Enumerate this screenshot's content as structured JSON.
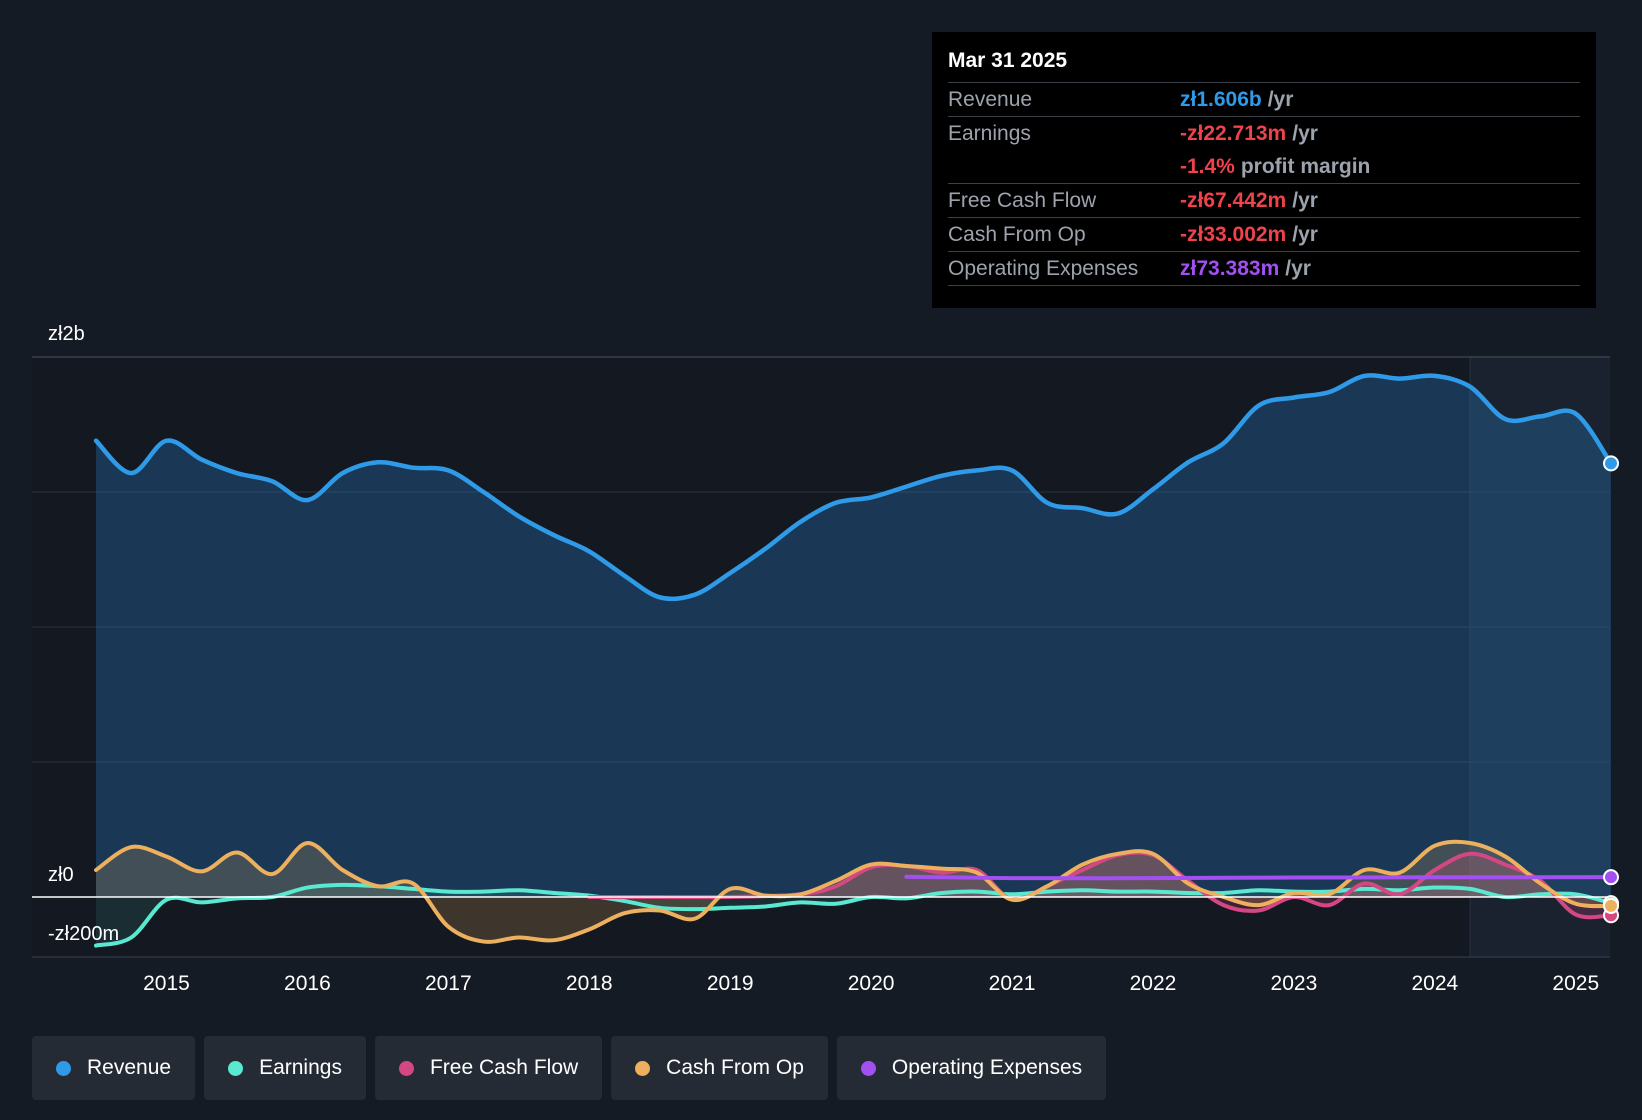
{
  "tooltip": {
    "date": "Mar 31 2025",
    "rows": [
      {
        "label": "Revenue",
        "value": "zł1.606b",
        "unit": "/yr",
        "color": "#2f9be8"
      },
      {
        "label": "Earnings",
        "value": "-zł22.713m",
        "unit": "/yr",
        "color": "#f0424a"
      },
      {
        "label": "",
        "value": "-1.4%",
        "unit": "profit margin",
        "color": "#f0424a"
      },
      {
        "label": "Free Cash Flow",
        "value": "-zł67.442m",
        "unit": "/yr",
        "color": "#f0424a"
      },
      {
        "label": "Cash From Op",
        "value": "-zł33.002m",
        "unit": "/yr",
        "color": "#f0424a"
      },
      {
        "label": "Operating Expenses",
        "value": "zł73.383m",
        "unit": "/yr",
        "color": "#a251f0"
      }
    ]
  },
  "legend": [
    {
      "label": "Revenue",
      "color": "#2f9be8"
    },
    {
      "label": "Earnings",
      "color": "#5ae8d0"
    },
    {
      "label": "Free Cash Flow",
      "color": "#d54783"
    },
    {
      "label": "Cash From Op",
      "color": "#ecb05e"
    },
    {
      "label": "Operating Expenses",
      "color": "#a251f0"
    }
  ],
  "chart_data": {
    "type": "line",
    "y_tick_labels": [
      "zł2b",
      "zł0",
      "-zł200m"
    ],
    "ylim": [
      -200,
      2000
    ],
    "y_unit": "zł m",
    "x_tick_labels": [
      "2015",
      "2016",
      "2017",
      "2018",
      "2019",
      "2020",
      "2021",
      "2022",
      "2023",
      "2024",
      "2025"
    ],
    "xlim": [
      2014.5,
      2025.25
    ],
    "forecast_start": 2024.25,
    "series": [
      {
        "name": "Revenue",
        "color": "#2f9be8",
        "fill": true,
        "x": [
          2014.5,
          2014.75,
          2015.0,
          2015.25,
          2015.5,
          2015.75,
          2016.0,
          2016.25,
          2016.5,
          2016.75,
          2017.0,
          2017.25,
          2017.5,
          2017.75,
          2018.0,
          2018.25,
          2018.5,
          2018.75,
          2019.0,
          2019.25,
          2019.5,
          2019.75,
          2020.0,
          2020.25,
          2020.5,
          2020.75,
          2021.0,
          2021.25,
          2021.5,
          2021.75,
          2022.0,
          2022.25,
          2022.5,
          2022.75,
          2023.0,
          2023.25,
          2023.5,
          2023.75,
          2024.0,
          2024.25,
          2024.5,
          2024.75,
          2025.0,
          2025.25
        ],
        "values": [
          1690,
          1570,
          1690,
          1620,
          1570,
          1540,
          1470,
          1570,
          1610,
          1590,
          1580,
          1500,
          1410,
          1340,
          1280,
          1190,
          1110,
          1120,
          1200,
          1290,
          1390,
          1460,
          1480,
          1520,
          1560,
          1580,
          1580,
          1460,
          1440,
          1420,
          1510,
          1610,
          1680,
          1820,
          1850,
          1870,
          1930,
          1920,
          1930,
          1890,
          1770,
          1780,
          1790,
          1606
        ]
      },
      {
        "name": "Earnings",
        "color": "#5ae8d0",
        "fill": true,
        "x": [
          2014.5,
          2014.75,
          2015.0,
          2015.25,
          2015.5,
          2015.75,
          2016.0,
          2016.25,
          2016.5,
          2016.75,
          2017.0,
          2017.25,
          2017.5,
          2017.75,
          2018.0,
          2018.25,
          2018.5,
          2018.75,
          2019.0,
          2019.25,
          2019.5,
          2019.75,
          2020.0,
          2020.25,
          2020.5,
          2020.75,
          2021.0,
          2021.25,
          2021.5,
          2021.75,
          2022.0,
          2022.25,
          2022.5,
          2022.75,
          2023.0,
          2023.25,
          2023.5,
          2023.75,
          2024.0,
          2024.25,
          2024.5,
          2024.75,
          2025.0,
          2025.25
        ],
        "values": [
          -180,
          -150,
          -10,
          -20,
          -5,
          0,
          35,
          45,
          40,
          30,
          20,
          20,
          25,
          15,
          5,
          -15,
          -40,
          -45,
          -40,
          -35,
          -20,
          -25,
          0,
          -5,
          15,
          20,
          10,
          20,
          25,
          20,
          20,
          15,
          15,
          25,
          20,
          20,
          30,
          25,
          35,
          30,
          0,
          10,
          10,
          -22.7
        ]
      },
      {
        "name": "Free Cash Flow",
        "color": "#d54783",
        "fill": true,
        "x": [
          2018.0,
          2018.5,
          2019.0,
          2019.5,
          2019.75,
          2020.0,
          2020.25,
          2020.5,
          2020.75,
          2021.0,
          2021.25,
          2021.5,
          2021.75,
          2022.0,
          2022.25,
          2022.5,
          2022.75,
          2023.0,
          2023.25,
          2023.5,
          2023.75,
          2024.0,
          2024.25,
          2024.5,
          2024.75,
          2025.0,
          2025.25
        ],
        "values": [
          0,
          0,
          0,
          10,
          40,
          110,
          115,
          90,
          100,
          -10,
          40,
          100,
          155,
          155,
          60,
          -30,
          -50,
          0,
          -30,
          50,
          10,
          100,
          160,
          120,
          60,
          -65,
          -67.4
        ]
      },
      {
        "name": "Cash From Op",
        "color": "#ecb05e",
        "fill": true,
        "x": [
          2014.5,
          2014.75,
          2015.0,
          2015.25,
          2015.5,
          2015.75,
          2016.0,
          2016.25,
          2016.5,
          2016.75,
          2017.0,
          2017.25,
          2017.5,
          2017.75,
          2018.0,
          2018.25,
          2018.5,
          2018.75,
          2019.0,
          2019.25,
          2019.5,
          2019.75,
          2020.0,
          2020.25,
          2020.5,
          2020.75,
          2021.0,
          2021.25,
          2021.5,
          2021.75,
          2022.0,
          2022.25,
          2022.5,
          2022.75,
          2023.0,
          2023.25,
          2023.5,
          2023.75,
          2024.0,
          2024.25,
          2024.5,
          2024.75,
          2025.0,
          2025.25
        ],
        "values": [
          100,
          185,
          150,
          95,
          165,
          85,
          200,
          100,
          40,
          50,
          -110,
          -165,
          -150,
          -160,
          -120,
          -60,
          -50,
          -80,
          30,
          5,
          10,
          60,
          120,
          115,
          105,
          90,
          -10,
          40,
          120,
          160,
          160,
          50,
          0,
          -30,
          15,
          10,
          100,
          90,
          190,
          200,
          150,
          50,
          -25,
          -33
        ]
      },
      {
        "name": "Operating Expenses",
        "color": "#a251f0",
        "fill": false,
        "x": [
          2020.25,
          2021.0,
          2022.0,
          2023.0,
          2024.0,
          2025.25
        ],
        "values": [
          75,
          70,
          70,
          72,
          73,
          73.4
        ]
      }
    ]
  }
}
